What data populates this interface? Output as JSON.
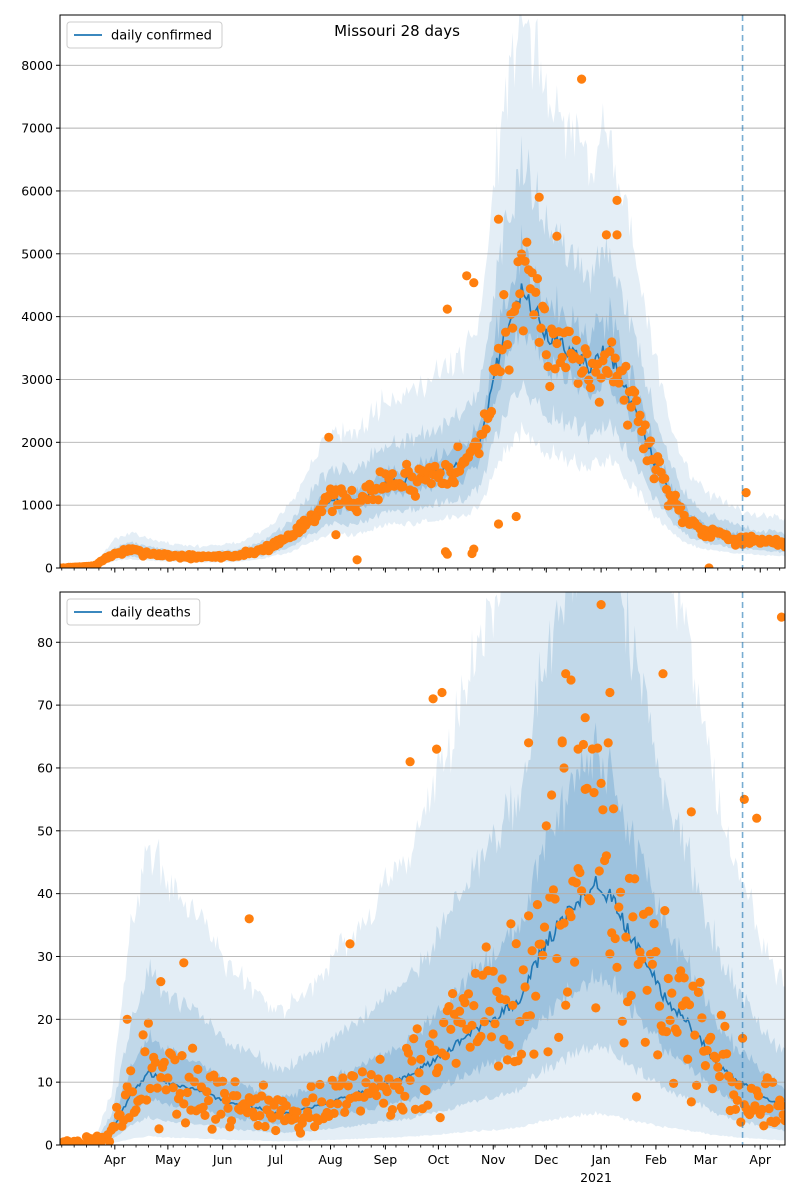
{
  "chart_data": [
    {
      "type": "line",
      "title": "Missouri 28 days",
      "xlabel": "",
      "ylabel": "",
      "ylim": [
        0,
        8800
      ],
      "yticks": [
        0,
        1000,
        2000,
        3000,
        4000,
        5000,
        6000,
        7000,
        8000
      ],
      "x_ticks_months": [],
      "legend": {
        "placement": "top-left",
        "entries": [
          "daily confirmed"
        ]
      },
      "grid": "horizontal",
      "vline_date": "2021-03-22",
      "colors": {
        "line": "#1f77b4",
        "points": "#ff7f0e",
        "band": "#1f77b4",
        "grid": "#b0b0b0"
      },
      "series": [
        {
          "name": "daily confirmed",
          "knots": [
            [
              "2020-03-01",
              0
            ],
            [
              "2020-03-20",
              30
            ],
            [
              "2020-04-01",
              230
            ],
            [
              "2020-04-10",
              280
            ],
            [
              "2020-05-01",
              200
            ],
            [
              "2020-05-20",
              170
            ],
            [
              "2020-06-10",
              200
            ],
            [
              "2020-06-25",
              310
            ],
            [
              "2020-07-10",
              520
            ],
            [
              "2020-07-20",
              800
            ],
            [
              "2020-08-01",
              1100
            ],
            [
              "2020-08-15",
              1050
            ],
            [
              "2020-09-01",
              1350
            ],
            [
              "2020-09-15",
              1400
            ],
            [
              "2020-10-01",
              1550
            ],
            [
              "2020-10-15",
              1650
            ],
            [
              "2020-10-25",
              2000
            ],
            [
              "2020-11-01",
              3000
            ],
            [
              "2020-11-10",
              4000
            ],
            [
              "2020-11-17",
              4400
            ],
            [
              "2020-11-25",
              4050
            ],
            [
              "2020-12-01",
              3700
            ],
            [
              "2020-12-15",
              3450
            ],
            [
              "2020-12-25",
              3200
            ],
            [
              "2021-01-05",
              3500
            ],
            [
              "2021-01-12",
              3000
            ],
            [
              "2021-01-20",
              2500
            ],
            [
              "2021-01-31",
              1700
            ],
            [
              "2021-02-10",
              1100
            ],
            [
              "2021-02-20",
              750
            ],
            [
              "2021-03-01",
              600
            ],
            [
              "2021-03-15",
              500
            ],
            [
              "2021-03-22",
              450
            ],
            [
              "2021-04-01",
              420
            ],
            [
              "2021-04-14",
              380
            ]
          ],
          "bands": [
            {
              "lower": 0.86,
              "upper": 1.15,
              "opacity": 0.22
            },
            {
              "lower": 0.66,
              "upper": 1.45,
              "opacity": 0.18
            },
            {
              "lower": 0.5,
              "upper": 2.0,
              "opacity": 0.12
            }
          ]
        },
        {
          "name": "",
          "kind": "observed",
          "base_from": "daily confirmed",
          "spread": 0.22,
          "seed": 7,
          "outliers": [
            [
              "2020-11-04",
              5550
            ],
            [
              "2020-11-27",
              5900
            ],
            [
              "2020-12-21",
              7780
            ],
            [
              "2021-01-10",
              5850
            ],
            [
              "2021-01-10",
              5300
            ],
            [
              "2021-01-04",
              5300
            ],
            [
              "2020-12-07",
              5280
            ],
            [
              "2020-10-06",
              4120
            ],
            [
              "2020-10-17",
              4650
            ],
            [
              "2020-10-21",
              4540
            ],
            [
              "2020-11-04",
              700
            ],
            [
              "2020-11-14",
              820
            ],
            [
              "2020-10-05",
              260
            ],
            [
              "2020-10-06",
              220
            ],
            [
              "2020-10-20",
              230
            ],
            [
              "2020-10-21",
              300
            ],
            [
              "2020-08-16",
              130
            ],
            [
              "2020-08-04",
              530
            ],
            [
              "2021-03-03",
              0
            ],
            [
              "2021-03-24",
              1200
            ],
            [
              "2020-07-31",
              2080
            ]
          ]
        }
      ]
    },
    {
      "type": "line",
      "title": "",
      "xlabel": "",
      "ylabel": "",
      "ylim": [
        0,
        88
      ],
      "yticks": [
        0,
        10,
        20,
        30,
        40,
        50,
        60,
        70,
        80
      ],
      "x_ticks_months": [
        "Apr",
        "May",
        "Jun",
        "Jul",
        "Aug",
        "Sep",
        "Oct",
        "Nov",
        "Dec",
        "Jan",
        "Feb",
        "Mar",
        "Apr"
      ],
      "x_year_label": "2021",
      "legend": {
        "placement": "top-left",
        "entries": [
          "daily deaths"
        ]
      },
      "grid": "horizontal",
      "vline_date": "2021-03-22",
      "colors": {
        "line": "#1f77b4",
        "points": "#ff7f0e",
        "band": "#1f77b4",
        "grid": "#b0b0b0"
      },
      "series": [
        {
          "name": "daily deaths",
          "knots": [
            [
              "2020-03-01",
              0
            ],
            [
              "2020-03-20",
              0
            ],
            [
              "2020-03-30",
              2
            ],
            [
              "2020-04-10",
              8
            ],
            [
              "2020-04-20",
              11.5
            ],
            [
              "2020-05-01",
              10
            ],
            [
              "2020-05-15",
              9
            ],
            [
              "2020-05-25",
              8
            ],
            [
              "2020-06-05",
              6.5
            ],
            [
              "2020-06-20",
              6
            ],
            [
              "2020-07-01",
              5
            ],
            [
              "2020-07-15",
              5.5
            ],
            [
              "2020-08-01",
              7
            ],
            [
              "2020-08-15",
              8
            ],
            [
              "2020-09-01",
              10
            ],
            [
              "2020-09-15",
              11
            ],
            [
              "2020-10-01",
              14
            ],
            [
              "2020-10-15",
              17
            ],
            [
              "2020-11-01",
              20
            ],
            [
              "2020-11-15",
              23
            ],
            [
              "2020-12-01",
              32
            ],
            [
              "2020-12-10",
              36
            ],
            [
              "2020-12-20",
              39
            ],
            [
              "2020-12-30",
              42
            ],
            [
              "2021-01-05",
              40
            ],
            [
              "2021-01-15",
              35
            ],
            [
              "2021-01-25",
              30
            ],
            [
              "2021-02-05",
              24
            ],
            [
              "2021-02-20",
              19
            ],
            [
              "2021-03-05",
              14
            ],
            [
              "2021-03-15",
              11
            ],
            [
              "2021-03-22",
              10
            ],
            [
              "2021-04-01",
              8
            ],
            [
              "2021-04-14",
              6
            ]
          ],
          "bands": [
            {
              "lower": 0.65,
              "upper": 1.5,
              "opacity": 0.22
            },
            {
              "lower": 0.38,
              "upper": 2.4,
              "opacity": 0.18
            },
            {
              "lower": 0.12,
              "upper": 4.2,
              "opacity": 0.12
            }
          ]
        },
        {
          "name": "",
          "kind": "observed",
          "base_from": "daily deaths",
          "spread": 0.8,
          "seed": 13,
          "outliers": [
            [
              "2021-01-01",
              86
            ],
            [
              "2021-04-13",
              84
            ],
            [
              "2020-12-12",
              75
            ],
            [
              "2021-02-05",
              75
            ],
            [
              "2020-12-15",
              74
            ],
            [
              "2021-01-06",
              72
            ],
            [
              "2020-10-03",
              72
            ],
            [
              "2020-09-28",
              71
            ],
            [
              "2020-12-23",
              68
            ],
            [
              "2020-11-21",
              64
            ],
            [
              "2020-12-10",
              64
            ],
            [
              "2020-12-19",
              63
            ],
            [
              "2020-09-30",
              63
            ],
            [
              "2020-09-15",
              61
            ],
            [
              "2020-12-11",
              60
            ],
            [
              "2021-03-23",
              55
            ],
            [
              "2021-02-21",
              53
            ],
            [
              "2021-03-30",
              52
            ],
            [
              "2020-06-16",
              36
            ],
            [
              "2020-04-08",
              20
            ],
            [
              "2020-04-27",
              26
            ],
            [
              "2020-05-10",
              29
            ],
            [
              "2020-08-12",
              32
            ]
          ]
        }
      ]
    }
  ]
}
